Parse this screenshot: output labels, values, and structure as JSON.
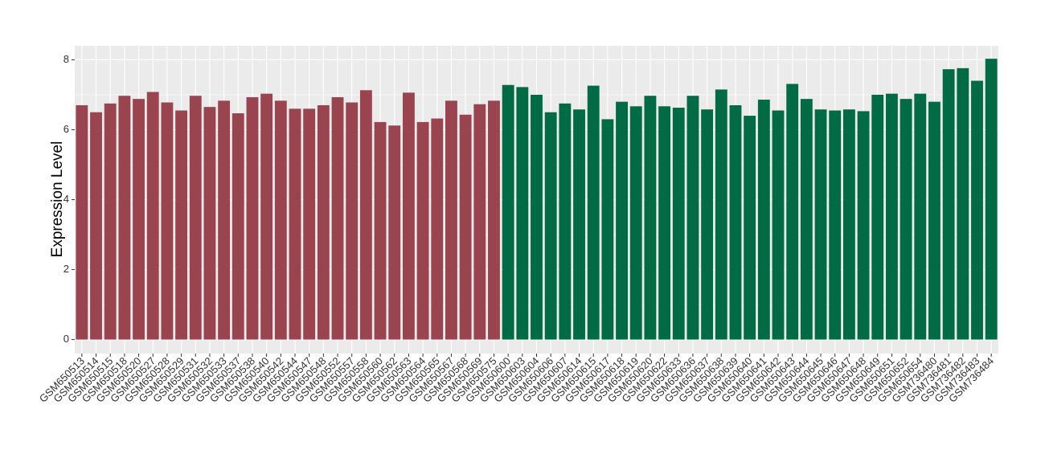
{
  "chart_data": {
    "type": "bar",
    "y_label": "Expression Level",
    "categories": [
      "GSM650513",
      "GSM650514",
      "GSM650515",
      "GSM650518",
      "GSM650520",
      "GSM650527",
      "GSM650528",
      "GSM650529",
      "GSM650531",
      "GSM650532",
      "GSM650533",
      "GSM650537",
      "GSM650538",
      "GSM650540",
      "GSM650542",
      "GSM650544",
      "GSM650547",
      "GSM650548",
      "GSM650552",
      "GSM650557",
      "GSM650558",
      "GSM650560",
      "GSM650562",
      "GSM650563",
      "GSM650564",
      "GSM650565",
      "GSM650567",
      "GSM650568",
      "GSM650569",
      "GSM650575",
      "GSM650600",
      "GSM650603",
      "GSM650604",
      "GSM650606",
      "GSM650607",
      "GSM650614",
      "GSM650615",
      "GSM650617",
      "GSM650618",
      "GSM650619",
      "GSM650620",
      "GSM650622",
      "GSM650633",
      "GSM650636",
      "GSM650637",
      "GSM650638",
      "GSM650639",
      "GSM650640",
      "GSM650641",
      "GSM650642",
      "GSM650643",
      "GSM650644",
      "GSM650645",
      "GSM650646",
      "GSM650647",
      "GSM650648",
      "GSM650649",
      "GSM650651",
      "GSM650652",
      "GSM650654",
      "GSM736480",
      "GSM736481",
      "GSM736482",
      "GSM736483",
      "GSM736484"
    ],
    "values": [
      6.7,
      6.5,
      6.75,
      6.97,
      6.88,
      7.08,
      6.78,
      6.55,
      6.97,
      6.65,
      6.83,
      6.47,
      6.93,
      7.03,
      6.83,
      6.6,
      6.6,
      6.7,
      6.93,
      6.78,
      7.13,
      6.22,
      6.12,
      7.06,
      6.22,
      6.32,
      6.83,
      6.43,
      6.73,
      6.83,
      7.28,
      7.22,
      7.0,
      6.5,
      6.75,
      6.58,
      7.26,
      6.3,
      6.8,
      6.67,
      6.97,
      6.67,
      6.63,
      6.97,
      6.58,
      7.15,
      6.7,
      6.4,
      6.86,
      6.55,
      7.31,
      6.88,
      6.58,
      6.55,
      6.58,
      6.53,
      7.0,
      7.03,
      6.88,
      7.03,
      6.8,
      7.73,
      7.76,
      7.4,
      8.03
    ],
    "bar_colors": [
      "#99444f",
      "#99444f",
      "#99444f",
      "#99444f",
      "#99444f",
      "#99444f",
      "#99444f",
      "#99444f",
      "#99444f",
      "#99444f",
      "#99444f",
      "#99444f",
      "#99444f",
      "#99444f",
      "#99444f",
      "#99444f",
      "#99444f",
      "#99444f",
      "#99444f",
      "#99444f",
      "#99444f",
      "#99444f",
      "#99444f",
      "#99444f",
      "#99444f",
      "#99444f",
      "#99444f",
      "#99444f",
      "#99444f",
      "#99444f",
      "#006b45",
      "#006b45",
      "#006b45",
      "#006b45",
      "#006b45",
      "#006b45",
      "#006b45",
      "#006b45",
      "#006b45",
      "#006b45",
      "#006b45",
      "#006b45",
      "#006b45",
      "#006b45",
      "#006b45",
      "#006b45",
      "#006b45",
      "#006b45",
      "#006b45",
      "#006b45",
      "#006b45",
      "#006b45",
      "#006b45",
      "#006b45",
      "#006b45",
      "#006b45",
      "#006b45",
      "#006b45",
      "#006b45",
      "#006b45",
      "#006b45",
      "#006b45",
      "#006b45",
      "#006b45",
      "#006b45"
    ],
    "ylim": [
      -0.4,
      8.4
    ],
    "yticks": [
      0,
      2,
      4,
      6,
      8
    ],
    "grid": true
  }
}
